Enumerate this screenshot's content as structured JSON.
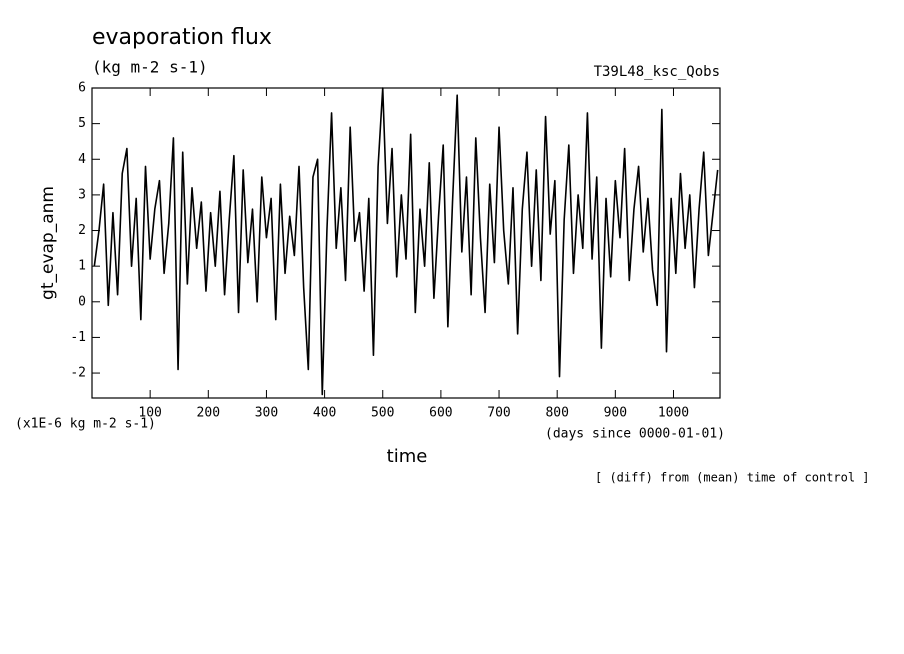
{
  "chart_data": {
    "type": "line",
    "title": "evaporation flux",
    "subtitle": "(kg m-2 s-1)",
    "experiment": "T39L48_ksc_Qobs",
    "ylabel": "gt_evap_anm",
    "yunit": "(x1E-6 kg m-2 s-1)",
    "xlabel": "time",
    "xunit": "(days since 0000-01-01)",
    "note": "[ (diff) from (mean) time of control ]",
    "xlim": [
      0,
      1080
    ],
    "xticks": [
      100,
      200,
      300,
      400,
      500,
      600,
      700,
      800,
      900,
      1000
    ],
    "ylim": [
      -2.7,
      6
    ],
    "yticks": [
      -2,
      -1,
      0,
      1,
      2,
      3,
      4,
      5,
      6
    ],
    "x": [
      4,
      12,
      20,
      28,
      36,
      44,
      52,
      60,
      68,
      76,
      84,
      92,
      100,
      108,
      116,
      124,
      132,
      140,
      148,
      156,
      164,
      172,
      180,
      188,
      196,
      204,
      212,
      220,
      228,
      236,
      244,
      252,
      260,
      268,
      276,
      284,
      292,
      300,
      308,
      316,
      324,
      332,
      340,
      348,
      356,
      364,
      372,
      380,
      388,
      396,
      404,
      412,
      420,
      428,
      436,
      444,
      452,
      460,
      468,
      476,
      484,
      492,
      500,
      508,
      516,
      524,
      532,
      540,
      548,
      556,
      564,
      572,
      580,
      588,
      596,
      604,
      612,
      620,
      628,
      636,
      644,
      652,
      660,
      668,
      676,
      684,
      692,
      700,
      708,
      716,
      724,
      732,
      740,
      748,
      756,
      764,
      772,
      780,
      788,
      796,
      804,
      812,
      820,
      828,
      836,
      844,
      852,
      860,
      868,
      876,
      884,
      892,
      900,
      908,
      916,
      924,
      932,
      940,
      948,
      956,
      964,
      972,
      980,
      988,
      996,
      1004,
      1012,
      1020,
      1028,
      1036,
      1044,
      1052,
      1060,
      1068,
      1076
    ],
    "series": [
      {
        "color": "#000000",
        "values": [
          1.0,
          2.0,
          3.3,
          -0.1,
          2.5,
          0.2,
          3.6,
          4.3,
          1.0,
          2.9,
          -0.5,
          3.8,
          1.2,
          2.6,
          3.4,
          0.8,
          2.2,
          4.6,
          -1.9,
          4.2,
          0.5,
          3.2,
          1.5,
          2.8,
          0.3,
          2.5,
          1.0,
          3.1,
          0.2,
          2.3,
          4.1,
          -0.3,
          3.7,
          1.1,
          2.6,
          0.0,
          3.5,
          1.8,
          2.9,
          -0.5,
          3.3,
          0.8,
          2.4,
          1.3,
          3.8,
          0.4,
          -1.9,
          3.5,
          4.0,
          -2.6,
          2.0,
          5.3,
          1.5,
          3.2,
          0.6,
          4.9,
          1.7,
          2.5,
          0.3,
          2.9,
          -1.5,
          3.8,
          6.0,
          2.2,
          4.3,
          0.7,
          3.0,
          1.2,
          4.7,
          -0.3,
          2.6,
          1.0,
          3.9,
          0.1,
          2.4,
          4.4,
          -0.7,
          2.8,
          5.8,
          1.4,
          3.5,
          0.2,
          4.6,
          1.8,
          -0.3,
          3.3,
          1.1,
          4.9,
          2.0,
          0.5,
          3.2,
          -0.9,
          2.6,
          4.2,
          1.0,
          3.7,
          0.6,
          5.2,
          1.9,
          3.4,
          -2.1,
          2.3,
          4.4,
          0.8,
          3.0,
          1.5,
          5.3,
          1.2,
          3.5,
          -1.3,
          2.9,
          0.7,
          3.4,
          1.8,
          4.3,
          0.6,
          2.6,
          3.8,
          1.4,
          2.9,
          0.9,
          -0.1,
          5.4,
          -1.4,
          2.9,
          0.8,
          3.6,
          1.5,
          3.0,
          0.4,
          2.6,
          4.2,
          1.3,
          2.5,
          3.7
        ]
      }
    ]
  }
}
